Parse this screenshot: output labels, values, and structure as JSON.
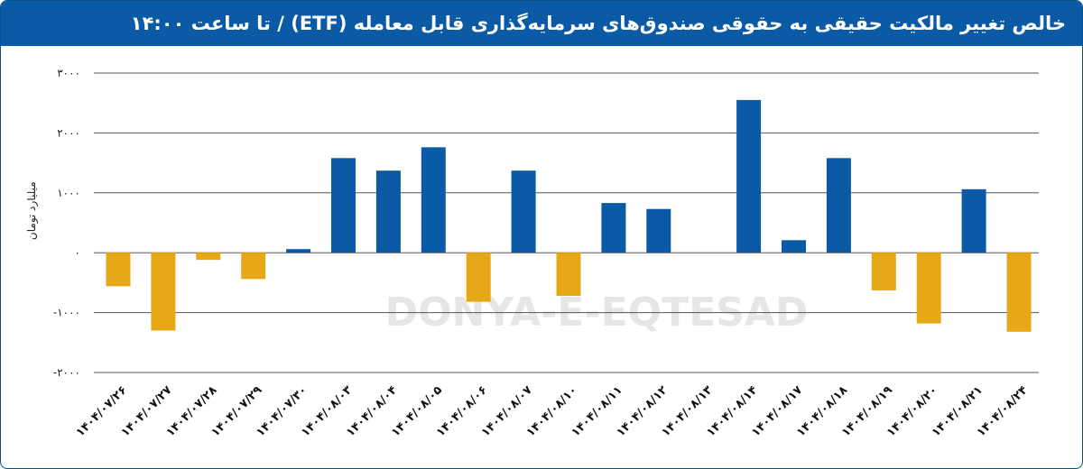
{
  "header": {
    "title": "خالص تغییر مالکیت حقیقی به حقوقی صندوق‌های سرمایه‌گذاری قابل معامله (ETF) / تا ساعت ۱۴:۰۰"
  },
  "watermark": {
    "latin": "DONYA-E-EQTESAD"
  },
  "colors": {
    "positive": "#0b5aa6",
    "negative": "#e6a817",
    "header_bg": "#0b5aa6",
    "gridline": "#555555"
  },
  "chart_data": {
    "type": "bar",
    "title": "خالص تغییر مالکیت حقیقی به حقوقی صندوق‌های سرمایه‌گذاری قابل معامله (ETF) / تا ساعت ۱۴:۰۰",
    "xlabel": "",
    "ylabel": "میلیارد تومان",
    "ylim": [
      -2000,
      3000
    ],
    "yticks": [
      -2000,
      -1000,
      0,
      1000,
      2000,
      3000
    ],
    "ytick_labels": [
      "-۲۰۰۰",
      "-۱۰۰۰",
      "۰",
      "۱۰۰۰",
      "۲۰۰۰",
      "۳۰۰۰"
    ],
    "grid": true,
    "legend": "none",
    "categories": [
      "۱۴۰۴/۰۷/۲۶",
      "۱۴۰۴/۰۷/۲۷",
      "۱۴۰۴/۰۷/۲۸",
      "۱۴۰۴/۰۷/۲۹",
      "۱۴۰۴/۰۷/۳۰",
      "۱۴۰۴/۰۸/۰۳",
      "۱۴۰۴/۰۸/۰۴",
      "۱۴۰۴/۰۸/۰۵",
      "۱۴۰۴/۰۸/۰۶",
      "۱۴۰۴/۰۸/۰۷",
      "۱۴۰۴/۰۸/۱۰",
      "۱۴۰۴/۰۸/۱۱",
      "۱۴۰۴/۰۸/۱۲",
      "۱۴۰۴/۰۸/۱۳",
      "۱۴۰۴/۰۸/۱۴",
      "۱۴۰۴/۰۸/۱۷",
      "۱۴۰۴/۰۸/۱۸",
      "۱۴۰۴/۰۸/۱۹",
      "۱۴۰۴/۰۸/۲۰",
      "۱۴۰۴/۰۸/۲۱",
      "۱۴۰۴/۰۸/۲۴"
    ],
    "values": [
      -560,
      -1300,
      -120,
      -440,
      60,
      1580,
      1370,
      1760,
      -820,
      1370,
      -720,
      830,
      730,
      0,
      2550,
      210,
      1580,
      -630,
      -1180,
      1060,
      -1320
    ]
  }
}
